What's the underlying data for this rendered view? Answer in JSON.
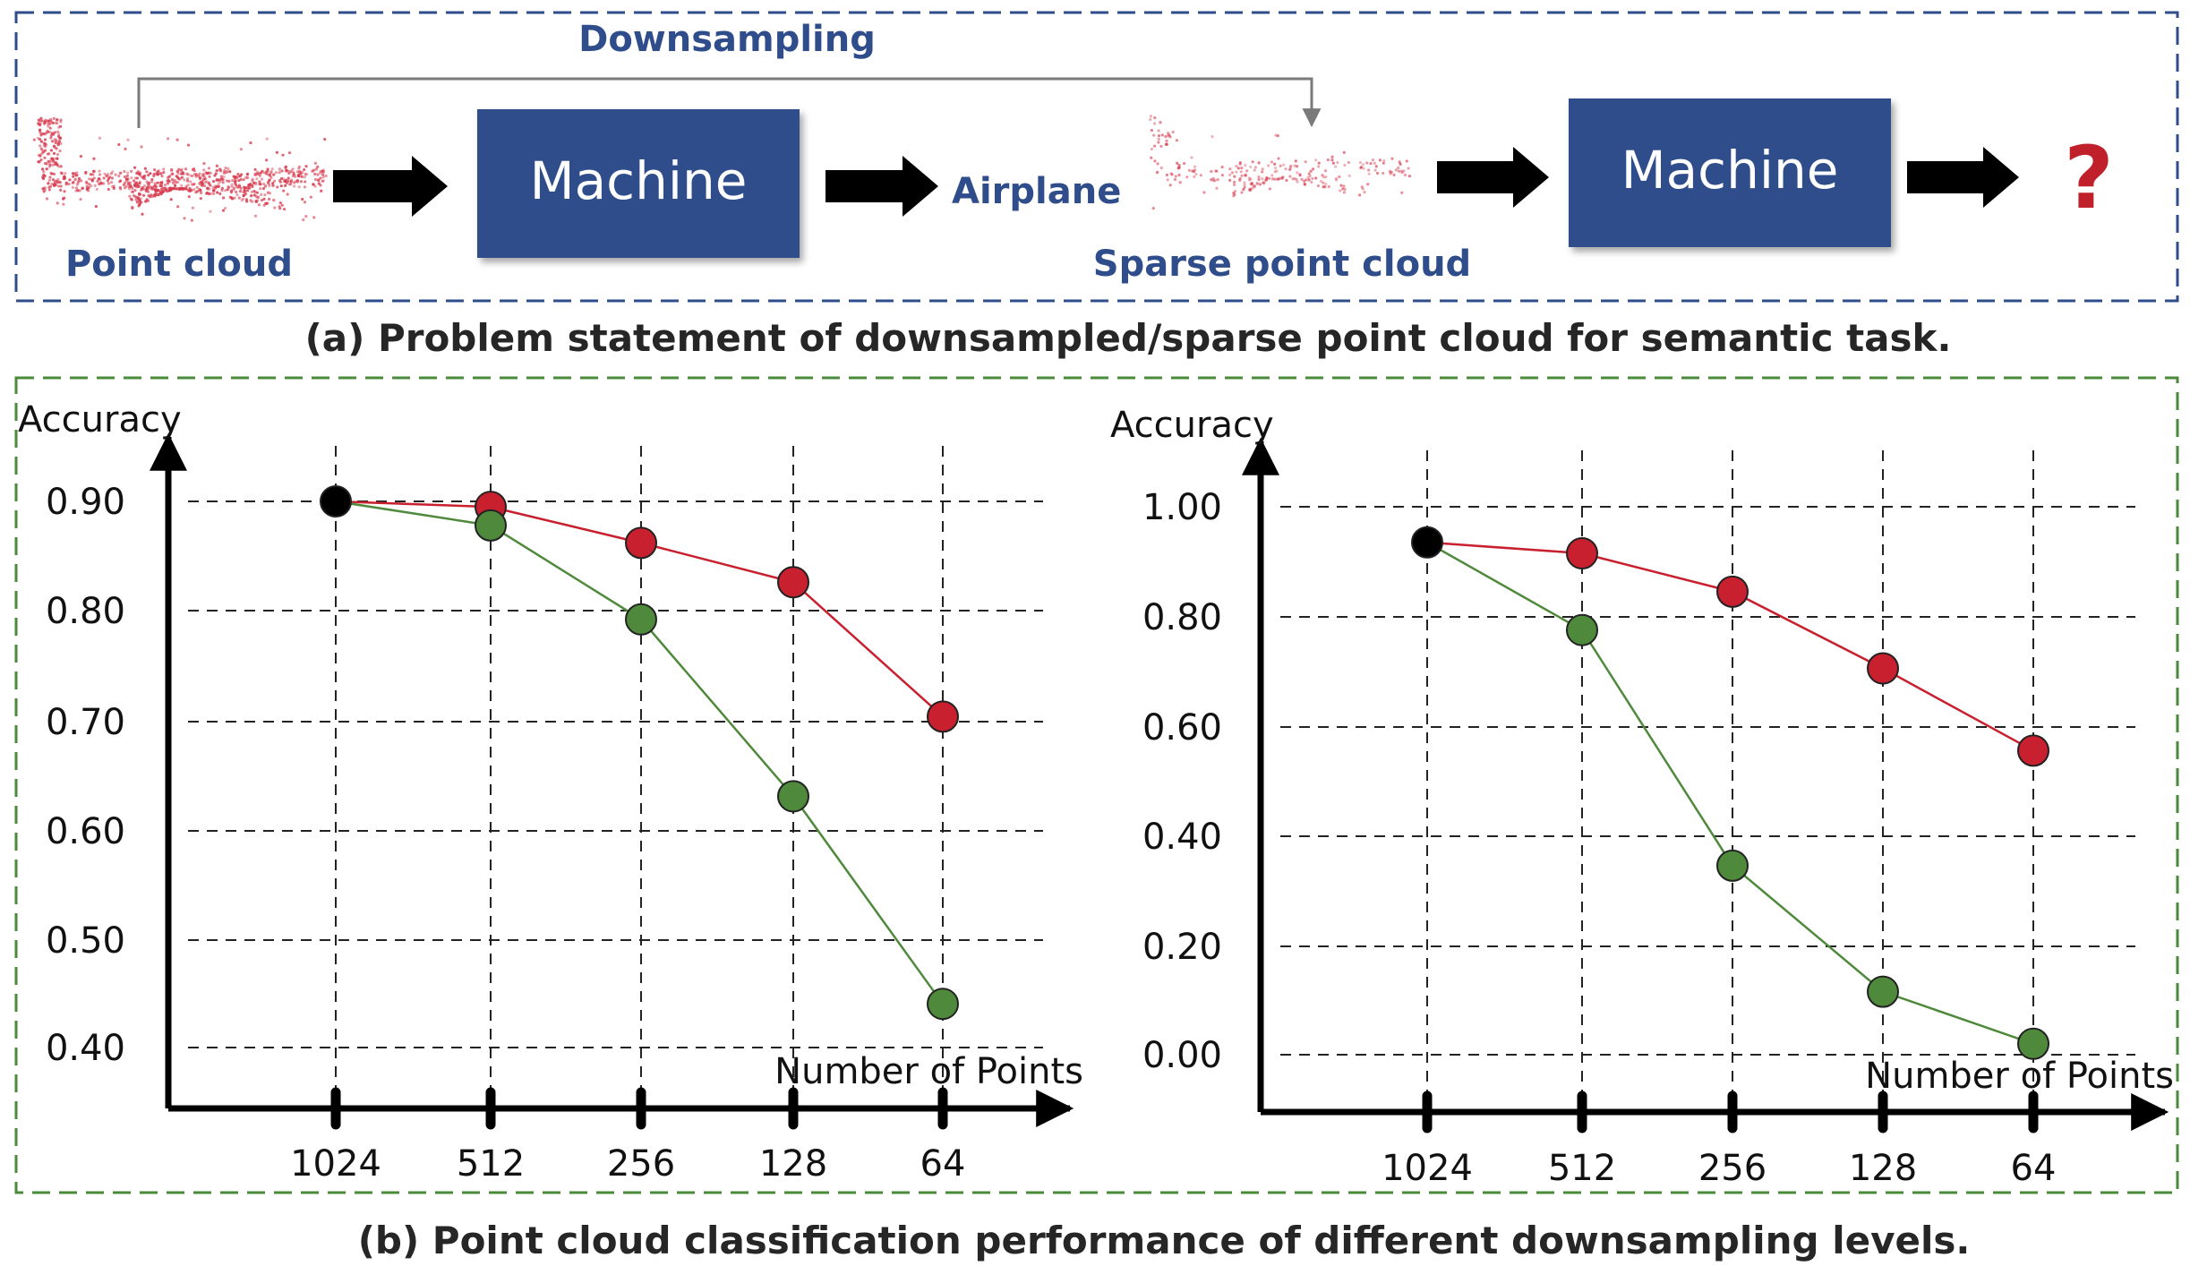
{
  "panel_a": {
    "downsampling_label": "Downsampling",
    "point_cloud_label": "Point cloud",
    "machine_label_1": "Machine",
    "airplane_label": "Airplane",
    "sparse_point_cloud_label": "Sparse point cloud",
    "machine_label_2": "Machine",
    "question_mark": "?",
    "caption": "(a) Problem statement of downsampled/sparse point cloud for semantic task.",
    "colors": {
      "box_fill": "#2f4d8a",
      "border_dash": "#2f4d8a",
      "points": "#d63a4e",
      "question": "#c0202a"
    }
  },
  "panel_b": {
    "caption": "(b) Point cloud classification performance of different downsampling levels.",
    "colors": {
      "border_dash": "#4a8a3a"
    }
  },
  "chart_data": [
    {
      "type": "line",
      "ylabel": "Accuracy",
      "xlabel": "Number of Points",
      "categories": [
        "1024",
        "512",
        "256",
        "128",
        "64"
      ],
      "y_ticks": [
        "0.90",
        "0.80",
        "0.70",
        "0.60",
        "0.50",
        "0.40"
      ],
      "ylim": [
        0.38,
        0.9
      ],
      "grid": true,
      "series": [
        {
          "values": [
            0.9,
            0.895,
            0.862,
            0.826,
            0.703
          ],
          "color": "#c8202e"
        },
        {
          "values": [
            0.9,
            0.878,
            0.792,
            0.63,
            0.44
          ],
          "color": "#4f8a3c"
        }
      ],
      "start_point_color": "#000000"
    },
    {
      "type": "line",
      "ylabel": "Accuracy",
      "xlabel": "Number of Points",
      "categories": [
        "1024",
        "512",
        "256",
        "128",
        "64"
      ],
      "y_ticks": [
        "1.00",
        "0.80",
        "0.60",
        "0.40",
        "0.20",
        "0.00"
      ],
      "ylim": [
        -0.1,
        1.0
      ],
      "grid": true,
      "series": [
        {
          "values": [
            0.935,
            0.915,
            0.845,
            0.705,
            0.555
          ],
          "color": "#c8202e"
        },
        {
          "values": [
            0.935,
            0.775,
            0.345,
            0.115,
            0.02
          ],
          "color": "#4f8a3c"
        }
      ],
      "start_point_color": "#000000"
    }
  ]
}
